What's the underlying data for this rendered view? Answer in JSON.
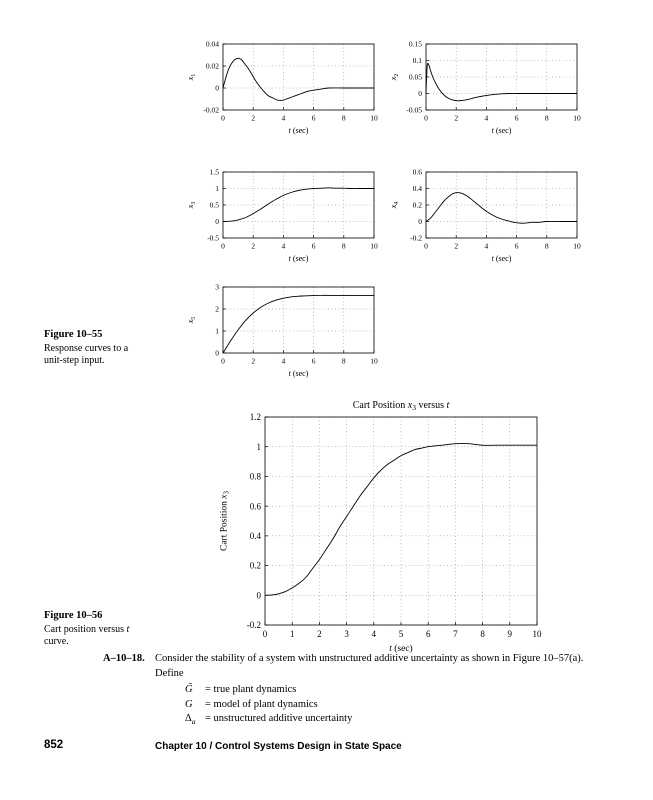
{
  "page": {
    "figure55": {
      "label": "Figure 10–55",
      "line1": "Response curves to a",
      "line2": "unit-step input."
    },
    "figure56": {
      "label": "Figure 10–56",
      "line1_segments": [
        {
          "text": "Cart position versus "
        },
        {
          "text": "t",
          "italic": true
        }
      ],
      "line2": "curve."
    },
    "problem": {
      "label": "A–10–18.",
      "intro": "Consider the stability of a system with unstructured additive uncertainty as shown in Figure 10–57(a). Define",
      "definitions": [
        {
          "sym": [
            {
              "text": "G̃",
              "italic": true
            }
          ],
          "rest": [
            {
              "text": "= true plant dynamics"
            }
          ]
        },
        {
          "sym": [
            {
              "text": "G",
              "italic": true
            }
          ],
          "rest": [
            {
              "text": "= model of plant dynamics"
            }
          ]
        },
        {
          "sym": [
            {
              "text": "Δ"
            },
            {
              "text": "a",
              "italic": true,
              "sub": true
            }
          ],
          "rest": [
            {
              "text": "= unstructured additive uncertainty"
            }
          ]
        }
      ]
    },
    "footer": {
      "page_number": "852",
      "chapter": "Chapter 10  /  Control Systems Design in State Space"
    }
  },
  "chart_data": [
    {
      "type": "line",
      "name": "x1 unit-step response",
      "xlim": [
        0,
        10
      ],
      "ylim": [
        -0.02,
        0.04
      ],
      "xticks": [
        0,
        2,
        4,
        6,
        8,
        10
      ],
      "xtick_labels": [
        "0",
        "2",
        "4",
        "6",
        "8",
        "10"
      ],
      "yticks": [
        -0.02,
        0,
        0.02,
        0.04
      ],
      "ytick_labels": [
        "-0.02",
        "0",
        "0.02",
        "0.04"
      ],
      "grid": true,
      "xlabel_segments": [
        {
          "text": "t",
          "italic": true
        },
        {
          "text": " (sec)"
        }
      ],
      "ylabel_segments": [
        {
          "text": "x",
          "italic": true
        },
        {
          "text": "1",
          "sub": true
        }
      ],
      "points": [
        [
          0,
          0
        ],
        [
          0.2,
          0.01
        ],
        [
          0.4,
          0.018
        ],
        [
          0.6,
          0.023
        ],
        [
          0.8,
          0.026
        ],
        [
          1,
          0.027
        ],
        [
          1.2,
          0.026
        ],
        [
          1.5,
          0.021
        ],
        [
          1.8,
          0.015
        ],
        [
          2.1,
          0.008
        ],
        [
          2.4,
          0.002
        ],
        [
          2.7,
          -0.003
        ],
        [
          3,
          -0.007
        ],
        [
          3.3,
          -0.009
        ],
        [
          3.6,
          -0.011
        ],
        [
          4,
          -0.011
        ],
        [
          4.4,
          -0.009
        ],
        [
          4.8,
          -0.007
        ],
        [
          5.2,
          -0.005
        ],
        [
          5.6,
          -0.003
        ],
        [
          6,
          -0.002
        ],
        [
          6.5,
          -0.001
        ],
        [
          7,
          0
        ],
        [
          8,
          0
        ],
        [
          9,
          0
        ],
        [
          10,
          0
        ]
      ]
    },
    {
      "type": "line",
      "name": "x2 unit-step response",
      "xlim": [
        0,
        10
      ],
      "ylim": [
        -0.05,
        0.15
      ],
      "xticks": [
        0,
        2,
        4,
        6,
        8,
        10
      ],
      "xtick_labels": [
        "0",
        "2",
        "4",
        "6",
        "8",
        "10"
      ],
      "yticks": [
        -0.05,
        0,
        0.05,
        0.1,
        0.15
      ],
      "ytick_labels": [
        "-0.05",
        "0",
        "0.05",
        "0.1",
        "0.15"
      ],
      "grid": true,
      "xlabel_segments": [
        {
          "text": "t",
          "italic": true
        },
        {
          "text": " (sec)"
        }
      ],
      "ylabel_segments": [
        {
          "text": "x",
          "italic": true
        },
        {
          "text": "2",
          "sub": true
        }
      ],
      "points": [
        [
          0,
          0
        ],
        [
          0.05,
          0.06
        ],
        [
          0.1,
          0.09
        ],
        [
          0.2,
          0.085
        ],
        [
          0.3,
          0.07
        ],
        [
          0.45,
          0.05
        ],
        [
          0.6,
          0.035
        ],
        [
          0.8,
          0.018
        ],
        [
          1,
          0.005
        ],
        [
          1.2,
          -0.005
        ],
        [
          1.5,
          -0.015
        ],
        [
          1.8,
          -0.02
        ],
        [
          2.1,
          -0.022
        ],
        [
          2.4,
          -0.021
        ],
        [
          2.8,
          -0.018
        ],
        [
          3.2,
          -0.013
        ],
        [
          3.6,
          -0.009
        ],
        [
          4,
          -0.006
        ],
        [
          4.5,
          -0.003
        ],
        [
          5,
          -0.001
        ],
        [
          5.5,
          0
        ],
        [
          6,
          0
        ],
        [
          7,
          0
        ],
        [
          8,
          0
        ],
        [
          9,
          0
        ],
        [
          10,
          0
        ]
      ]
    },
    {
      "type": "line",
      "name": "x3 unit-step response",
      "xlim": [
        0,
        10
      ],
      "ylim": [
        -0.5,
        1.5
      ],
      "xticks": [
        0,
        2,
        4,
        6,
        8,
        10
      ],
      "xtick_labels": [
        "0",
        "2",
        "4",
        "6",
        "8",
        "10"
      ],
      "yticks": [
        -0.5,
        0,
        0.5,
        1,
        1.5
      ],
      "ytick_labels": [
        "-0.5",
        "0",
        "0.5",
        "1",
        "1.5"
      ],
      "grid": true,
      "xlabel_segments": [
        {
          "text": "t",
          "italic": true
        },
        {
          "text": " (sec)"
        }
      ],
      "ylabel_segments": [
        {
          "text": "x",
          "italic": true
        },
        {
          "text": "3",
          "sub": true
        }
      ],
      "points": [
        [
          0,
          0
        ],
        [
          0.5,
          0.01
        ],
        [
          1,
          0.05
        ],
        [
          1.5,
          0.12
        ],
        [
          2,
          0.24
        ],
        [
          2.5,
          0.38
        ],
        [
          3,
          0.53
        ],
        [
          3.5,
          0.67
        ],
        [
          4,
          0.79
        ],
        [
          4.5,
          0.88
        ],
        [
          5,
          0.94
        ],
        [
          5.5,
          0.98
        ],
        [
          6,
          1
        ],
        [
          6.5,
          1.01
        ],
        [
          7,
          1.02
        ],
        [
          7.5,
          1.01
        ],
        [
          8,
          1.01
        ],
        [
          8.5,
          1
        ],
        [
          9,
          1
        ],
        [
          10,
          1
        ]
      ]
    },
    {
      "type": "line",
      "name": "x4 unit-step response",
      "xlim": [
        0,
        10
      ],
      "ylim": [
        -0.2,
        0.6
      ],
      "xticks": [
        0,
        2,
        4,
        6,
        8,
        10
      ],
      "xtick_labels": [
        "0",
        "2",
        "4",
        "6",
        "8",
        "10"
      ],
      "yticks": [
        -0.2,
        0,
        0.2,
        0.4,
        0.6
      ],
      "ytick_labels": [
        "-0.2",
        "0",
        "0.2",
        "0.4",
        "0.6"
      ],
      "grid": true,
      "xlabel_segments": [
        {
          "text": "t",
          "italic": true
        },
        {
          "text": " (sec)"
        }
      ],
      "ylabel_segments": [
        {
          "text": "x",
          "italic": true
        },
        {
          "text": "4",
          "sub": true
        }
      ],
      "points": [
        [
          0,
          0
        ],
        [
          0.3,
          0.04
        ],
        [
          0.6,
          0.11
        ],
        [
          0.9,
          0.18
        ],
        [
          1.2,
          0.25
        ],
        [
          1.5,
          0.3
        ],
        [
          1.8,
          0.34
        ],
        [
          2.1,
          0.35
        ],
        [
          2.4,
          0.34
        ],
        [
          2.7,
          0.31
        ],
        [
          3,
          0.27
        ],
        [
          3.4,
          0.21
        ],
        [
          3.8,
          0.15
        ],
        [
          4.2,
          0.1
        ],
        [
          4.6,
          0.06
        ],
        [
          5,
          0.03
        ],
        [
          5.4,
          0.01
        ],
        [
          5.8,
          -0.01
        ],
        [
          6.2,
          -0.02
        ],
        [
          6.6,
          -0.02
        ],
        [
          7,
          -0.01
        ],
        [
          7.5,
          -0.01
        ],
        [
          8,
          0
        ],
        [
          9,
          0
        ],
        [
          10,
          0
        ]
      ]
    },
    {
      "type": "line",
      "name": "x5 unit-step response",
      "xlim": [
        0,
        10
      ],
      "ylim": [
        0,
        3
      ],
      "xticks": [
        0,
        2,
        4,
        6,
        8,
        10
      ],
      "xtick_labels": [
        "0",
        "2",
        "4",
        "6",
        "8",
        "10"
      ],
      "yticks": [
        0,
        1,
        2,
        3
      ],
      "ytick_labels": [
        "0",
        "1",
        "2",
        "3"
      ],
      "grid": true,
      "xlabel_segments": [
        {
          "text": "t",
          "italic": true
        },
        {
          "text": " (sec)"
        }
      ],
      "ylabel_segments": [
        {
          "text": "x",
          "italic": true
        },
        {
          "text": "5",
          "sub": true
        }
      ],
      "points": [
        [
          0,
          0
        ],
        [
          0.5,
          0.55
        ],
        [
          1,
          1.05
        ],
        [
          1.5,
          1.48
        ],
        [
          2,
          1.82
        ],
        [
          2.5,
          2.08
        ],
        [
          3,
          2.27
        ],
        [
          3.5,
          2.4
        ],
        [
          4,
          2.49
        ],
        [
          4.5,
          2.55
        ],
        [
          5,
          2.58
        ],
        [
          5.5,
          2.6
        ],
        [
          6,
          2.61
        ],
        [
          6.5,
          2.62
        ],
        [
          7,
          2.62
        ],
        [
          8,
          2.62
        ],
        [
          9,
          2.62
        ],
        [
          10,
          2.62
        ]
      ]
    },
    {
      "type": "line",
      "name": "Cart position x3 versus t",
      "title_segments": [
        {
          "text": "Cart Position "
        },
        {
          "text": "x",
          "italic": true
        },
        {
          "text": "3",
          "sub": true
        },
        {
          "text": " versus "
        },
        {
          "text": "t",
          "italic": true
        }
      ],
      "xlim": [
        0,
        10
      ],
      "ylim": [
        -0.2,
        1.2
      ],
      "xticks": [
        0,
        1,
        2,
        3,
        4,
        5,
        6,
        7,
        8,
        9,
        10
      ],
      "xtick_labels": [
        "0",
        "1",
        "2",
        "3",
        "4",
        "5",
        "6",
        "7",
        "8",
        "9",
        "10"
      ],
      "yticks": [
        -0.2,
        0,
        0.2,
        0.4,
        0.6,
        0.8,
        1,
        1.2
      ],
      "ytick_labels": [
        "-0.2",
        "0",
        "0.2",
        "0.4",
        "0.6",
        "0.8",
        "1",
        "1.2"
      ],
      "grid": true,
      "xlabel_segments": [
        {
          "text": "t",
          "italic": true
        },
        {
          "text": " (sec)"
        }
      ],
      "ylabel_segments": [
        {
          "text": "Cart Position "
        },
        {
          "text": "x",
          "italic": true
        },
        {
          "text": "3",
          "sub": true
        }
      ],
      "points": [
        [
          0,
          0
        ],
        [
          0.25,
          0.002
        ],
        [
          0.5,
          0.01
        ],
        [
          0.75,
          0.025
        ],
        [
          1,
          0.05
        ],
        [
          1.25,
          0.08
        ],
        [
          1.5,
          0.12
        ],
        [
          1.75,
          0.18
        ],
        [
          2,
          0.24
        ],
        [
          2.25,
          0.31
        ],
        [
          2.5,
          0.38
        ],
        [
          2.75,
          0.46
        ],
        [
          3,
          0.53
        ],
        [
          3.25,
          0.6
        ],
        [
          3.5,
          0.67
        ],
        [
          3.75,
          0.73
        ],
        [
          4,
          0.79
        ],
        [
          4.25,
          0.84
        ],
        [
          4.5,
          0.88
        ],
        [
          4.75,
          0.91
        ],
        [
          5,
          0.94
        ],
        [
          5.25,
          0.96
        ],
        [
          5.5,
          0.98
        ],
        [
          5.75,
          0.99
        ],
        [
          6,
          1
        ],
        [
          6.5,
          1.01
        ],
        [
          7,
          1.02
        ],
        [
          7.5,
          1.02
        ],
        [
          8,
          1.01
        ],
        [
          8.5,
          1.01
        ],
        [
          9,
          1.01
        ],
        [
          9.5,
          1.01
        ],
        [
          10,
          1.01
        ]
      ]
    }
  ]
}
